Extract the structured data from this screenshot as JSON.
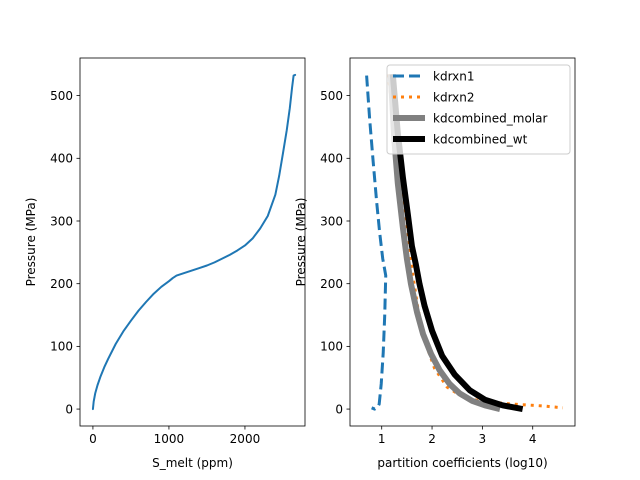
{
  "chart_data": [
    {
      "type": "line",
      "xlabel": "S_melt (ppm)",
      "ylabel": "Pressure (MPa)",
      "xlim": [
        -170,
        2790
      ],
      "ylim": [
        -27,
        560
      ],
      "xticks": [
        0,
        1000,
        2000
      ],
      "xtick_labels": [
        "0",
        "1000",
        "2000"
      ],
      "yticks": [
        0,
        100,
        200,
        300,
        400,
        500
      ],
      "ytick_labels": [
        "0",
        "100",
        "200",
        "300",
        "400",
        "500"
      ],
      "grid": false,
      "series": [
        {
          "color": "#1f77b4",
          "style": "solid",
          "points": [
            [
              0,
              0
            ],
            [
              10,
              12
            ],
            [
              30,
              25
            ],
            [
              60,
              38
            ],
            [
              100,
              52
            ],
            [
              150,
              67
            ],
            [
              200,
              80
            ],
            [
              300,
              104
            ],
            [
              400,
              124
            ],
            [
              500,
              141
            ],
            [
              600,
              157
            ],
            [
              700,
              171
            ],
            [
              800,
              184
            ],
            [
              900,
              195
            ],
            [
              1000,
              204
            ],
            [
              1050,
              209
            ],
            [
              1100,
              213
            ],
            [
              1200,
              217
            ],
            [
              1300,
              221
            ],
            [
              1400,
              225
            ],
            [
              1500,
              229
            ],
            [
              1600,
              234
            ],
            [
              1700,
              240
            ],
            [
              1800,
              246
            ],
            [
              1900,
              253
            ],
            [
              2000,
              261
            ],
            [
              2100,
              272
            ],
            [
              2200,
              288
            ],
            [
              2300,
              308
            ],
            [
              2400,
              342
            ],
            [
              2450,
              372
            ],
            [
              2500,
              408
            ],
            [
              2550,
              445
            ],
            [
              2590,
              480
            ],
            [
              2620,
              513
            ],
            [
              2640,
              532
            ],
            [
              2660,
              533
            ]
          ]
        }
      ]
    },
    {
      "type": "line",
      "xlabel": "partition coefficients (log10)",
      "ylabel": "Pressure (MPa)",
      "xlim": [
        0.37,
        4.84
      ],
      "ylim": [
        -27,
        560
      ],
      "xticks": [
        1,
        2,
        3,
        4
      ],
      "xtick_labels": [
        "1",
        "2",
        "3",
        "4"
      ],
      "yticks": [
        0,
        100,
        200,
        300,
        400,
        500
      ],
      "ytick_labels": [
        "0",
        "100",
        "200",
        "300",
        "400",
        "500"
      ],
      "grid": false,
      "legend": "upper right",
      "series": [
        {
          "name": "kdrxn1",
          "color": "#1f77b4",
          "style": "dashed",
          "points": [
            [
              0.7,
              532
            ],
            [
              0.76,
              463
            ],
            [
              0.83,
              395
            ],
            [
              0.9,
              330
            ],
            [
              0.96,
              281
            ],
            [
              1.02,
              240
            ],
            [
              1.08,
              213
            ],
            [
              1.06,
              150
            ],
            [
              1.03,
              90
            ],
            [
              0.99,
              40
            ],
            [
              0.95,
              8
            ],
            [
              0.92,
              3
            ],
            [
              0.86,
              0
            ],
            [
              0.8,
              2
            ]
          ]
        },
        {
          "name": "kdrxn2",
          "color": "#ff7f0e",
          "style": "dotted",
          "points": [
            [
              1.13,
              534
            ],
            [
              1.22,
              470
            ],
            [
              1.33,
              390
            ],
            [
              1.42,
              330
            ],
            [
              1.53,
              270
            ],
            [
              1.62,
              213
            ],
            [
              1.72,
              160
            ],
            [
              1.85,
              110
            ],
            [
              2.05,
              65
            ],
            [
              2.3,
              35
            ],
            [
              2.6,
              20
            ],
            [
              3.0,
              12
            ],
            [
              3.6,
              8
            ],
            [
              4.2,
              5
            ],
            [
              4.6,
              2
            ]
          ]
        },
        {
          "name": "kdcombined_molar",
          "color": "#808080",
          "style": "solid-thick",
          "points": [
            [
              1.18,
              534
            ],
            [
              1.25,
              430
            ],
            [
              1.32,
              360
            ],
            [
              1.42,
              290
            ],
            [
              1.5,
              240
            ],
            [
              1.58,
              200
            ],
            [
              1.7,
              155
            ],
            [
              1.82,
              120
            ],
            [
              1.98,
              88
            ],
            [
              2.15,
              62
            ],
            [
              2.35,
              40
            ],
            [
              2.55,
              25
            ],
            [
              2.8,
              13
            ],
            [
              3.05,
              6
            ],
            [
              3.35,
              0
            ]
          ]
        },
        {
          "name": "kdcombined_wt",
          "color": "#000000",
          "style": "solid-thick",
          "points": [
            [
              1.22,
              534
            ],
            [
              1.32,
              440
            ],
            [
              1.42,
              370
            ],
            [
              1.52,
              310
            ],
            [
              1.6,
              260
            ],
            [
              1.68,
              230
            ],
            [
              1.75,
              200
            ],
            [
              1.85,
              165
            ],
            [
              2.0,
              125
            ],
            [
              2.2,
              85
            ],
            [
              2.45,
              55
            ],
            [
              2.75,
              30
            ],
            [
              3.05,
              15
            ],
            [
              3.4,
              6
            ],
            [
              3.8,
              0
            ]
          ]
        }
      ]
    }
  ]
}
